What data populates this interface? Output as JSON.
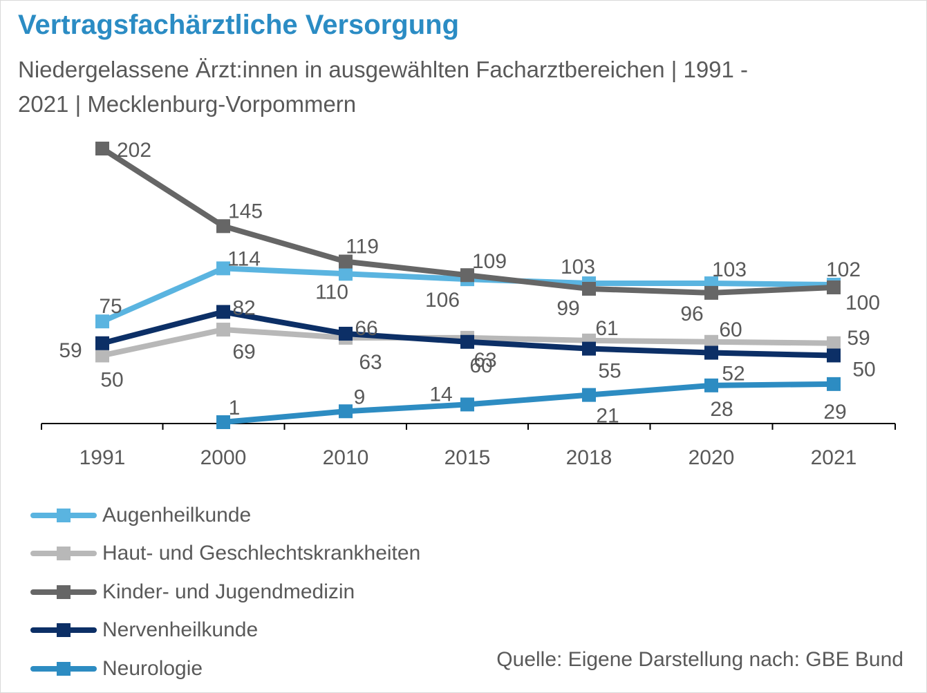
{
  "title": "Vertragsfachärztliche Versorgung",
  "subtitle": "Niedergelassene Ärzt:innen in ausgewählten Facharztbereichen | 1991 - 2021 | Mecklenburg-Vorpommern",
  "source": "Quelle: Eigene Darstellung nach: GBE Bund",
  "chart_data": {
    "type": "line",
    "categories": [
      "1991",
      "2000",
      "2010",
      "2015",
      "2018",
      "2020",
      "2021"
    ],
    "ylim": [
      0,
      210
    ],
    "grid": false,
    "legend_position": "bottom-left",
    "series": [
      {
        "name": "Augenheilkunde",
        "color": "#5ab4e0",
        "values": [
          75,
          114,
          110,
          106,
          103,
          103,
          102
        ]
      },
      {
        "name": "Haut- und Geschlechtskrankheiten",
        "color": "#b8b8b8",
        "values": [
          50,
          69,
          63,
          63,
          61,
          60,
          59
        ]
      },
      {
        "name": "Kinder- und Jugendmedizin",
        "color": "#666666",
        "values": [
          202,
          145,
          119,
          109,
          99,
          96,
          100
        ]
      },
      {
        "name": "Nervenheilkunde",
        "color": "#0c2f66",
        "values": [
          59,
          82,
          66,
          60,
          55,
          52,
          50
        ]
      },
      {
        "name": "Neurologie",
        "color": "#2d8cc2",
        "values": [
          null,
          1,
          9,
          14,
          21,
          28,
          29
        ]
      }
    ]
  }
}
